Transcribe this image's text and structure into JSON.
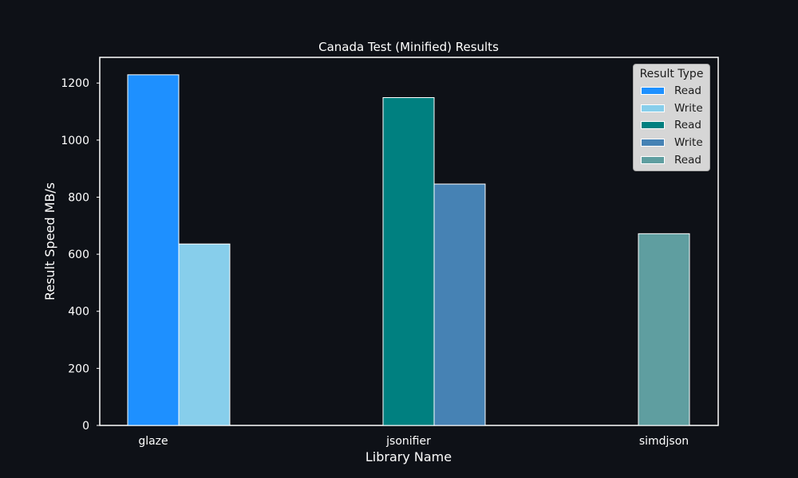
{
  "chart_data": {
    "type": "bar",
    "title": "Canada Test (Minified) Results",
    "xlabel": "Library Name",
    "ylabel": "Result Speed MB/s",
    "categories": [
      "glaze",
      "jsonifier",
      "simdjson"
    ],
    "ylim": [
      0,
      1290
    ],
    "yticks": [
      0,
      200,
      400,
      600,
      800,
      1000,
      1200
    ],
    "grid": false,
    "legend": {
      "title": "Result Type",
      "placement": "top-right"
    },
    "bars": [
      {
        "category": "glaze",
        "type": "Read",
        "value": 1229,
        "color": "#1e90ff"
      },
      {
        "category": "glaze",
        "type": "Write",
        "value": 636,
        "color": "#87ceeb"
      },
      {
        "category": "jsonifier",
        "type": "Read",
        "value": 1149,
        "color": "#008080"
      },
      {
        "category": "jsonifier",
        "type": "Write",
        "value": 846,
        "color": "#4682b4"
      },
      {
        "category": "simdjson",
        "type": "Read",
        "value": 672,
        "color": "#5f9ea0"
      }
    ],
    "colors": {
      "background": "#0e1117",
      "axes": "#ffffff",
      "text": "#ffffff",
      "bar_edge": "#ffffff"
    }
  }
}
